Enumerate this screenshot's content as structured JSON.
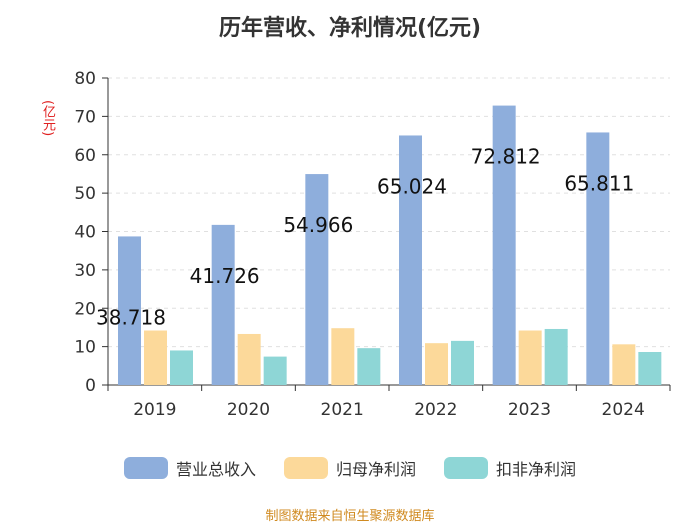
{
  "chart_data": {
    "type": "bar",
    "title": "历年营收、净利情况(亿元)",
    "ylabel": "(亿元)",
    "xlabel": "",
    "ylim": [
      0,
      80
    ],
    "yticks": [
      0,
      10,
      20,
      30,
      40,
      50,
      60,
      70,
      80
    ],
    "categories": [
      "2019",
      "2020",
      "2021",
      "2022",
      "2023",
      "2024"
    ],
    "series": [
      {
        "name": "营业总收入",
        "color": "#8eaedc",
        "values": [
          38.718,
          41.726,
          54.966,
          65.024,
          72.812,
          65.811
        ]
      },
      {
        "name": "归母净利润",
        "color": "#fcd99a",
        "values": [
          14.2,
          13.3,
          14.8,
          10.9,
          14.2,
          10.6
        ]
      },
      {
        "name": "扣非净利润",
        "color": "#8ed6d6",
        "values": [
          9.0,
          7.4,
          9.6,
          11.5,
          14.6,
          8.6
        ]
      }
    ],
    "data_labels": [
      "38.718",
      "41.726",
      "54.966",
      "65.024",
      "72.812",
      "65.811"
    ],
    "legend_position": "bottom",
    "grid": true
  },
  "source": "制图数据来自恒生聚源数据库"
}
